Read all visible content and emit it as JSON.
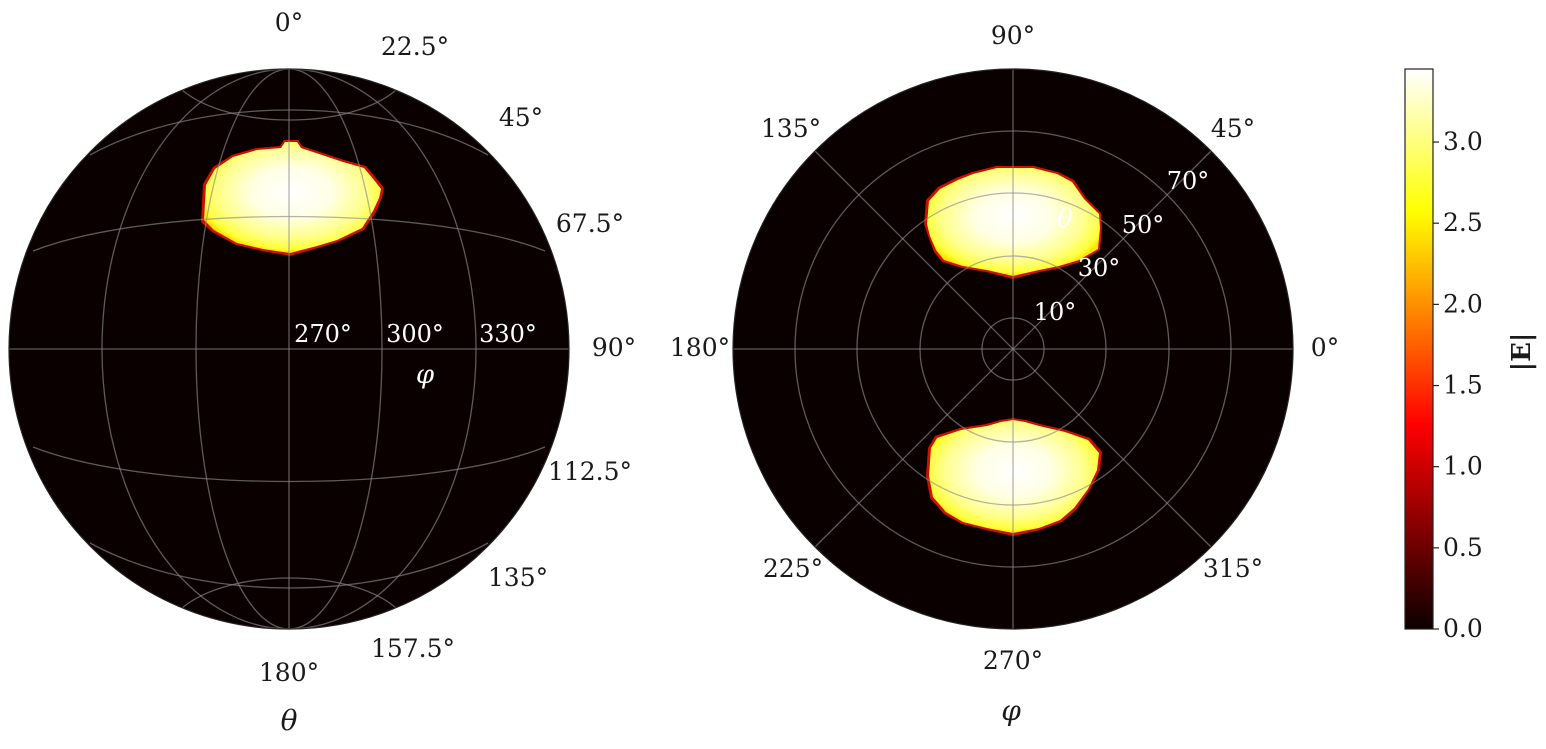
{
  "chart_data": [
    {
      "type": "heatmap",
      "projection": "orthographic sphere (side view)",
      "theta_ticks": [
        "0°",
        "22.5°",
        "45°",
        "67.5°",
        "90°",
        "112.5°",
        "135°",
        "157.5°",
        "180°"
      ],
      "phi_ticks": [
        "270°",
        "300°",
        "330°"
      ],
      "theta_label": "θ",
      "phi_label": "φ",
      "hotspots": [
        {
          "phi_center_deg": 270,
          "theta_center_deg": 32,
          "peak_value": 3.4
        }
      ]
    },
    {
      "type": "heatmap",
      "projection": "polar (top view)",
      "phi_ticks": [
        "0°",
        "45°",
        "90°",
        "135°",
        "180°",
        "225°",
        "270°",
        "315°"
      ],
      "theta_ticks": [
        "10°",
        "30°",
        "50°",
        "70°"
      ],
      "theta_label": "θ",
      "phi_label": "φ",
      "hotspots": [
        {
          "phi_center_deg": 90,
          "theta_center_deg": 40,
          "peak_value": 3.4
        },
        {
          "phi_center_deg": 270,
          "theta_center_deg": 40,
          "peak_value": 3.4
        }
      ]
    }
  ],
  "colorbar": {
    "label": "|E|",
    "colormap": "hot",
    "range": [
      0.0,
      3.45
    ],
    "ticks": [
      "0.0",
      "0.5",
      "1.0",
      "1.5",
      "2.0",
      "2.5",
      "3.0"
    ]
  }
}
